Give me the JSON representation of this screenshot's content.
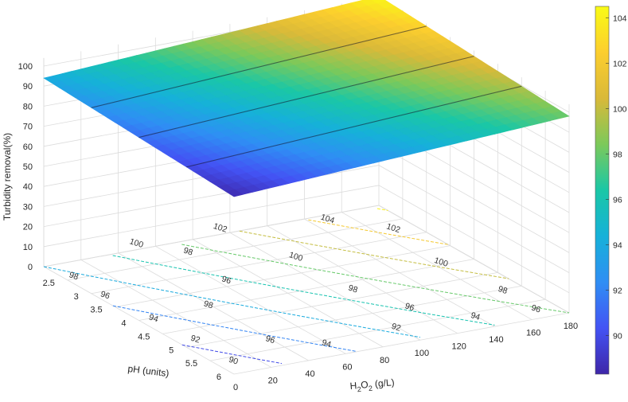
{
  "chart_data": {
    "type": "surface",
    "x_axis": {
      "label_parts": [
        "H",
        "2",
        "O",
        "2",
        " (g/L)"
      ],
      "ticks": [
        0,
        20,
        40,
        60,
        80,
        100,
        120,
        140,
        160,
        180
      ],
      "range": [
        0,
        180
      ]
    },
    "y_axis": {
      "label": "pH (units)",
      "ticks": [
        2.5,
        3,
        3.5,
        4,
        4.5,
        5,
        5.5,
        6
      ],
      "range": [
        2,
        6
      ]
    },
    "z_axis": {
      "label": "Turbidity removal(%)",
      "ticks": [
        0,
        10,
        20,
        30,
        40,
        50,
        60,
        70,
        80,
        90,
        100
      ],
      "range": [
        0,
        100
      ]
    },
    "surface_corners": [
      {
        "h2o2": 0,
        "ph": 2,
        "removal": 94
      },
      {
        "h2o2": 180,
        "ph": 2,
        "removal": 104.3
      },
      {
        "h2o2": 180,
        "ph": 6,
        "removal": 98
      },
      {
        "h2o2": 0,
        "ph": 6,
        "removal": 88.5
      }
    ],
    "contour_levels": [
      90,
      92,
      94,
      96,
      98,
      100,
      102,
      104
    ],
    "contour_labels": [
      {
        "text": "98",
        "h2o2": 6,
        "ph": 2.4
      },
      {
        "text": "96",
        "h2o2": 5,
        "ph": 3.1
      },
      {
        "text": "94",
        "h2o2": 8,
        "ph": 4.0
      },
      {
        "text": "92",
        "h2o2": 10,
        "ph": 4.8
      },
      {
        "text": "90",
        "h2o2": 10,
        "ph": 5.6
      },
      {
        "text": "98",
        "h2o2": 40,
        "ph": 3.9
      },
      {
        "text": "96",
        "h2o2": 40,
        "ph": 5.2
      },
      {
        "text": "94",
        "h2o2": 60,
        "ph": 5.6
      },
      {
        "text": "92",
        "h2o2": 100,
        "ph": 5.5
      },
      {
        "text": "96",
        "h2o2": 65,
        "ph": 3.3
      },
      {
        "text": "98",
        "h2o2": 70,
        "ph": 2.3
      },
      {
        "text": "100",
        "h2o2": 55,
        "ph": 1.8
      },
      {
        "text": "102",
        "h2o2": 100,
        "ph": 1.8
      },
      {
        "text": "104",
        "h2o2": 150,
        "ph": 2.1
      },
      {
        "text": "100",
        "h2o2": 110,
        "ph": 3.0
      },
      {
        "text": "98",
        "h2o2": 110,
        "ph": 4.2
      },
      {
        "text": "96",
        "h2o2": 120,
        "ph": 5.0
      },
      {
        "text": "94",
        "h2o2": 140,
        "ph": 5.6
      },
      {
        "text": "102",
        "h2o2": 170,
        "ph": 2.7
      },
      {
        "text": "100",
        "h2o2": 165,
        "ph": 3.9
      },
      {
        "text": "98",
        "h2o2": 170,
        "ph": 5.0
      },
      {
        "text": "96",
        "h2o2": 170,
        "ph": 5.7
      }
    ],
    "colorbar": {
      "ticks": [
        90,
        92,
        94,
        96,
        98,
        100,
        102,
        104
      ],
      "range": [
        88.3,
        104.5
      ],
      "colormap": "parula"
    },
    "grid": true,
    "colormap_stops": [
      "#3e26a8",
      "#4353f4",
      "#2f8ef4",
      "#16b1d9",
      "#1ac7a6",
      "#7cc95a",
      "#d9b939",
      "#fcce2e",
      "#f9fb15"
    ]
  }
}
